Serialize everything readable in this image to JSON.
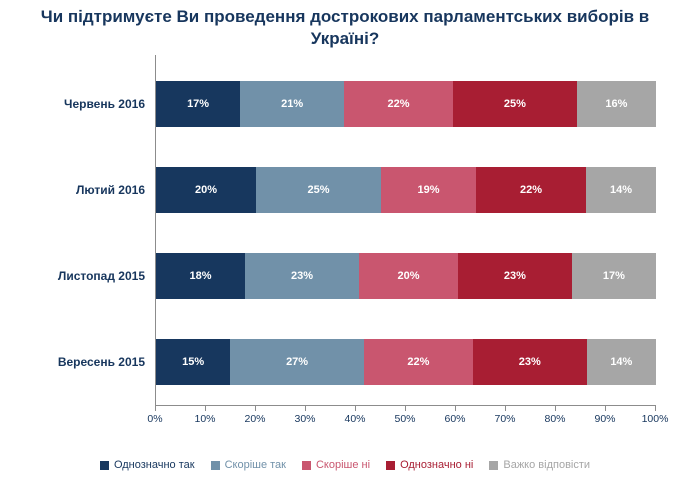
{
  "title": "Чи підтримуєте Ви проведення дострокових парламентських виборів в Україні?",
  "chart_data": {
    "type": "bar",
    "orientation": "horizontal",
    "stacked": true,
    "categories": [
      "Червень 2016",
      "Лютий 2016",
      "Листопад 2015",
      "Вересень 2015"
    ],
    "series": [
      {
        "name": "Однозначно так",
        "color": "#17375e",
        "values": [
          17,
          20,
          18,
          15
        ]
      },
      {
        "name": "Скоріше так",
        "color": "#7191a9",
        "values": [
          21,
          25,
          23,
          27
        ]
      },
      {
        "name": "Скоріше ні",
        "color": "#c9566f",
        "values": [
          22,
          19,
          20,
          22
        ]
      },
      {
        "name": "Однозначно ні",
        "color": "#a81e33",
        "values": [
          25,
          22,
          23,
          23
        ]
      },
      {
        "name": "Важко відповісти",
        "color": "#a6a6a6",
        "values": [
          16,
          14,
          17,
          14
        ]
      }
    ],
    "x_ticks": [
      "0%",
      "10%",
      "20%",
      "30%",
      "40%",
      "50%",
      "60%",
      "70%",
      "80%",
      "90%",
      "100%"
    ],
    "xlim": [
      0,
      100
    ],
    "value_suffix": "%",
    "grid": false,
    "legend_position": "bottom"
  }
}
